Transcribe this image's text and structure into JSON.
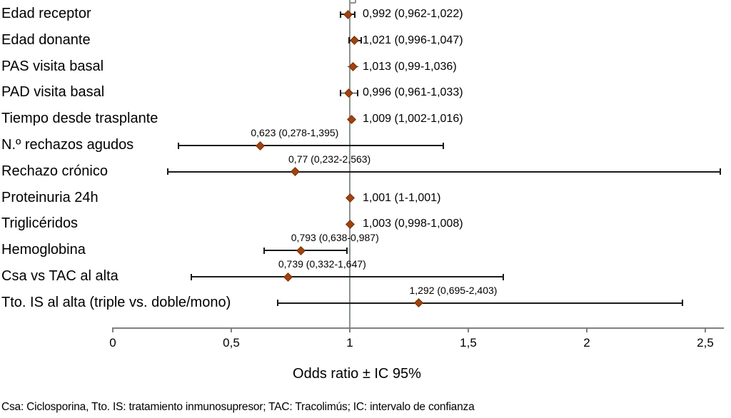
{
  "chart_data": {
    "type": "scatter",
    "subtype": "forest-plot",
    "title": "",
    "xlabel": "Odds ratio ± IC 95%",
    "ylabel": "",
    "xlim": [
      0,
      2.58
    ],
    "grid": false,
    "reference_line_x": 1,
    "x_ticks": [
      {
        "value": 0,
        "label": "0"
      },
      {
        "value": 0.5,
        "label": "0,5"
      },
      {
        "value": 1,
        "label": "1"
      },
      {
        "value": 1.5,
        "label": "1,5"
      },
      {
        "value": 2,
        "label": "2"
      },
      {
        "value": 2.5,
        "label": "2,5"
      }
    ],
    "rows": [
      {
        "label": "Edad receptor",
        "or": 0.992,
        "ci_low": 0.962,
        "ci_high": 1.022,
        "value_label": "0,992 (0,962-1,022)",
        "label_position": "right"
      },
      {
        "label": "Edad donante",
        "or": 1.021,
        "ci_low": 0.996,
        "ci_high": 1.047,
        "value_label": "1,021 (0,996-1,047)",
        "label_position": "right"
      },
      {
        "label": "PAS visita basal",
        "or": 1.013,
        "ci_low": 0.99,
        "ci_high": 1.036,
        "value_label": "1,013 (0,99-1,036)",
        "label_position": "right"
      },
      {
        "label": "PAD visita basal",
        "or": 0.996,
        "ci_low": 0.961,
        "ci_high": 1.033,
        "value_label": "0,996 (0,961-1,033)",
        "label_position": "right"
      },
      {
        "label": "Tiempo desde trasplante",
        "or": 1.009,
        "ci_low": 1.002,
        "ci_high": 1.016,
        "value_label": "1,009 (1,002-1,016)",
        "label_position": "right"
      },
      {
        "label": "N.º rechazos agudos",
        "or": 0.623,
        "ci_low": 0.278,
        "ci_high": 1.395,
        "value_label": "0,623 (0,278-1,395)",
        "label_position": "above"
      },
      {
        "label": "Rechazo crónico",
        "or": 0.77,
        "ci_low": 0.232,
        "ci_high": 2.563,
        "value_label": "0,77 (0,232-2,563)",
        "label_position": "above"
      },
      {
        "label": "Proteinuria 24h",
        "or": 1.001,
        "ci_low": 1.0,
        "ci_high": 1.001,
        "value_label": "1,001 (1-1,001)",
        "label_position": "right"
      },
      {
        "label": "Triglicéridos",
        "or": 1.003,
        "ci_low": 0.998,
        "ci_high": 1.008,
        "value_label": "1,003 (0,998-1,008)",
        "label_position": "right"
      },
      {
        "label": "Hemoglobina",
        "or": 0.793,
        "ci_low": 0.638,
        "ci_high": 0.987,
        "value_label": "0,793 (0,638-0,987)",
        "label_position": "above"
      },
      {
        "label": "Csa vs TAC al alta",
        "or": 0.739,
        "ci_low": 0.332,
        "ci_high": 1.647,
        "value_label": "0,739 (0,332-1,647)",
        "label_position": "above"
      },
      {
        "label": "Tto. IS al alta (triple vs. doble/mono)",
        "or": 1.292,
        "ci_low": 0.695,
        "ci_high": 2.403,
        "value_label": "1,292 (0,695-2,403)",
        "label_position": "above"
      }
    ],
    "colors": {
      "marker": "#a0430f",
      "marker_border": "#772f08",
      "ci_line": "#1a1a1a",
      "axis": "#808080",
      "reference_line": "#8b948d",
      "text": "#000000",
      "background": "#ffffff"
    },
    "legend": null
  },
  "footnote": "Csa: Ciclosporina, Tto. IS: tratamiento inmunosupresor; TAC: Tracolimús; IC: intervalo de confianza"
}
